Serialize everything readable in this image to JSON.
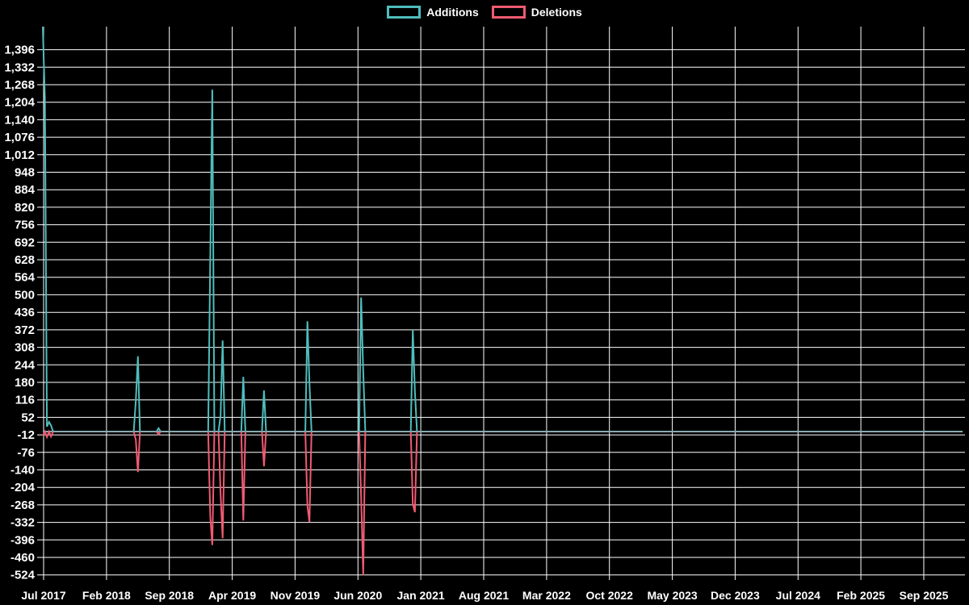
{
  "legend": {
    "items": [
      {
        "label": "Additions",
        "color": "#4fbdbd"
      },
      {
        "label": "Deletions",
        "color": "#f05b72"
      }
    ]
  },
  "colors": {
    "background": "#000000",
    "grid": "#ffffff",
    "text": "#ffffff",
    "baseline": "#87abb0",
    "additions": "#4fbdbd",
    "deletions": "#f05b72"
  },
  "chart_data": {
    "type": "line",
    "legend_position": "top-center",
    "grid": true,
    "baseline_value": 0,
    "x_axis": {
      "unit": "weeks since Jul 2017",
      "total_weeks": 445,
      "months_between_tick_labels": 7,
      "tick_labels": [
        "Jul 2017",
        "Feb 2018",
        "Sep 2018",
        "Apr 2019",
        "Nov 2019",
        "Jun 2020",
        "Jan 2021",
        "Aug 2021",
        "Mar 2022",
        "Oct 2022",
        "May 2023",
        "Dec 2023",
        "Jul 2024",
        "Feb 2025",
        "Sep 2025"
      ]
    },
    "y_axis": {
      "min": -524,
      "max": 1396,
      "tick_step": 64,
      "tick_labels": [
        "1,396",
        "1,332",
        "1,268",
        "1,204",
        "1,140",
        "1,076",
        "1,012",
        "948",
        "884",
        "820",
        "756",
        "692",
        "628",
        "564",
        "500",
        "436",
        "372",
        "308",
        "244",
        "180",
        "116",
        "52",
        "-12",
        "-76",
        "-140",
        "-204",
        "-268",
        "-332",
        "-396",
        "-460",
        "-524"
      ]
    },
    "series": [
      {
        "name": "Additions",
        "color": "#4fbdbd",
        "points_by_week": {
          "0": 1480,
          "1": 1215,
          "2": 18,
          "3": 35,
          "4": 22,
          "45": 113,
          "46": 275,
          "56": 12,
          "81": 634,
          "82": 1250,
          "86": 60,
          "87": 333,
          "97": 200,
          "107": 150,
          "128": 403,
          "129": 177,
          "154": 490,
          "155": 221,
          "179": 372,
          "180": 148
        }
      },
      {
        "name": "Deletions",
        "color": "#f05b72",
        "points_by_week": {
          "0": -15,
          "2": -20,
          "4": -18,
          "45": -30,
          "46": -148,
          "56": -10,
          "81": -310,
          "82": -415,
          "86": -230,
          "87": -390,
          "97": -325,
          "107": -127,
          "128": -271,
          "129": -330,
          "154": -236,
          "155": -525,
          "179": -265,
          "180": -295
        }
      }
    ]
  }
}
